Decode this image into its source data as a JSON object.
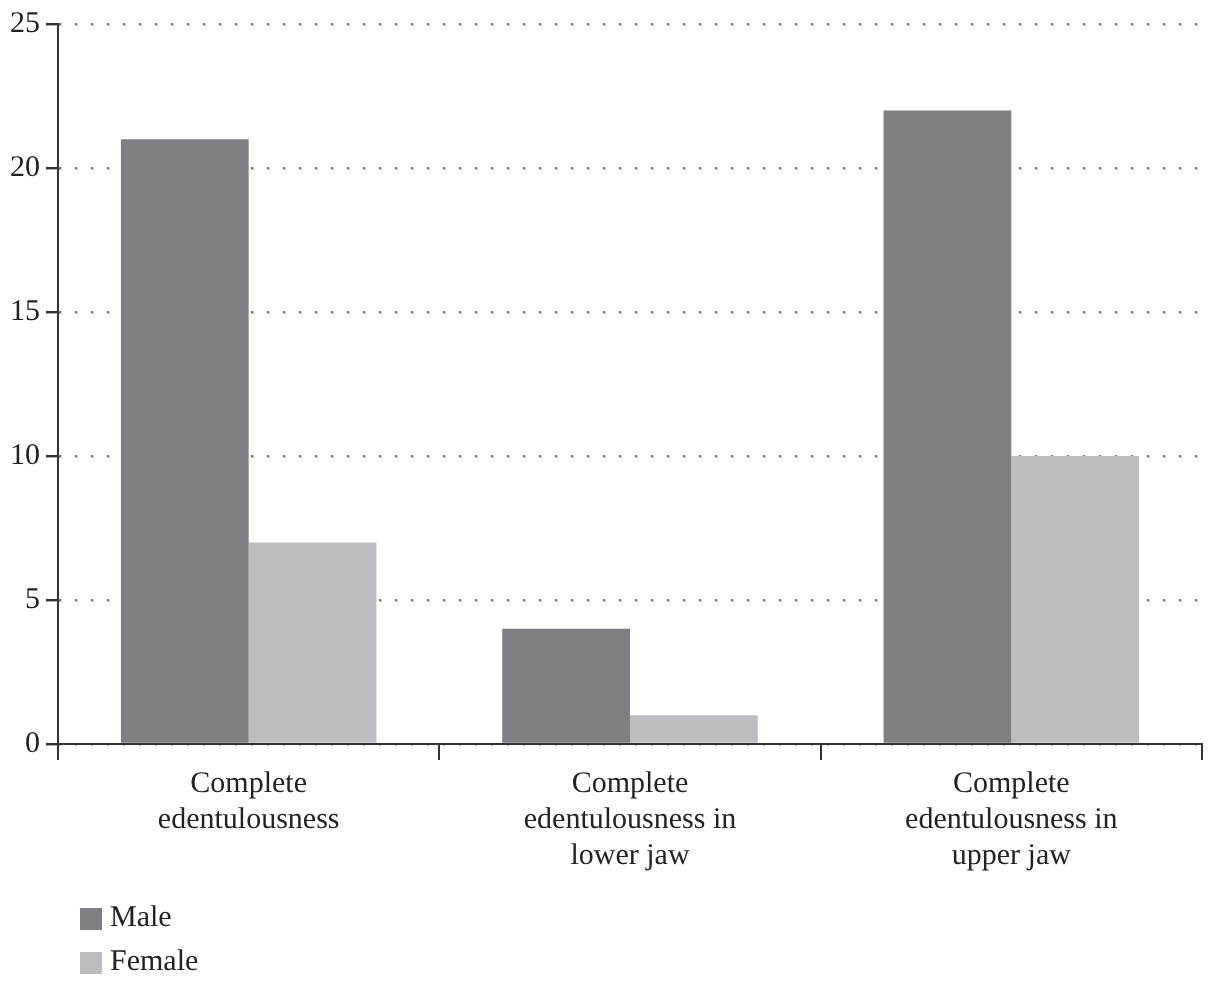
{
  "chart_data": {
    "type": "bar",
    "categories": [
      "Complete edentulousness",
      "Complete edentulousness in lower jaw",
      "Complete edentulousness in upper jaw"
    ],
    "series": [
      {
        "name": "Male",
        "color": "#7f7f83",
        "values": [
          21,
          4,
          22
        ]
      },
      {
        "name": "Female",
        "color": "#bdbdc1",
        "values": [
          7,
          1,
          10
        ]
      }
    ],
    "ylim": [
      0,
      25
    ],
    "yticks": [
      0,
      5,
      10,
      15,
      20,
      25
    ],
    "grid": "y",
    "legend": "bottom left"
  }
}
